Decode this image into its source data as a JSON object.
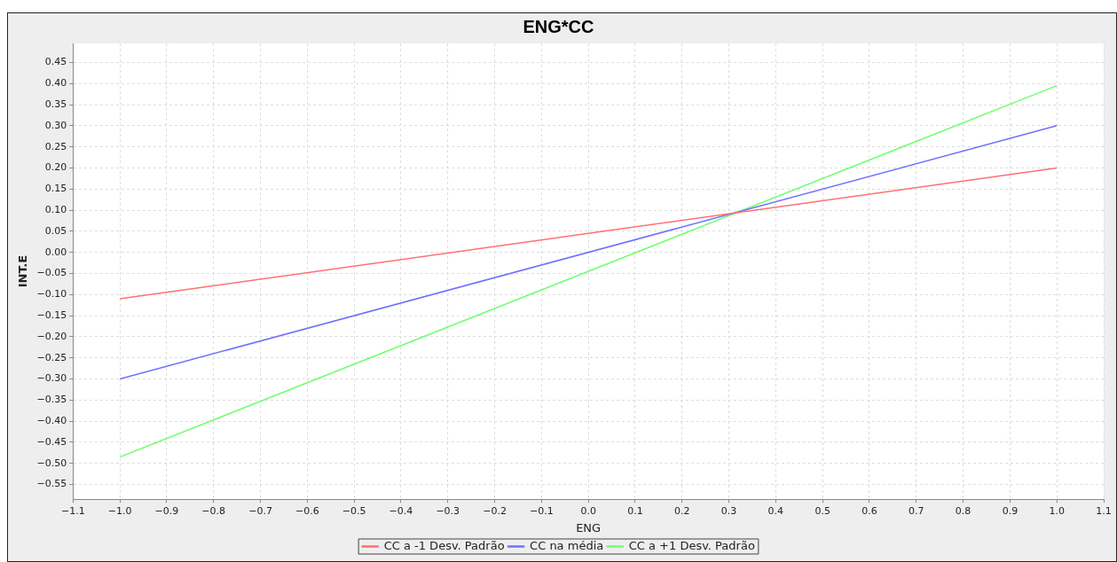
{
  "chart_data": {
    "type": "line",
    "title": "ENG*CC",
    "xlabel": "ENG",
    "ylabel": "INT.E",
    "xlim": [
      -1.1,
      1.1
    ],
    "xticks": [
      {
        "value": -1.1,
        "label": "−1.1"
      },
      {
        "value": -1.0,
        "label": "−1.0"
      },
      {
        "value": -0.9,
        "label": "−0.9"
      },
      {
        "value": -0.8,
        "label": "−0.8"
      },
      {
        "value": -0.7,
        "label": "−0.7"
      },
      {
        "value": -0.6,
        "label": "−0.6"
      },
      {
        "value": -0.5,
        "label": "−0.5"
      },
      {
        "value": -0.4,
        "label": "−0.4"
      },
      {
        "value": -0.3,
        "label": "−0.3"
      },
      {
        "value": -0.2,
        "label": "−0.2"
      },
      {
        "value": -0.1,
        "label": "−0.1"
      },
      {
        "value": 0,
        "label": "0.0"
      },
      {
        "value": 0.1,
        "label": "0.1"
      },
      {
        "value": 0.2,
        "label": "0.2"
      },
      {
        "value": 0.3,
        "label": "0.3"
      },
      {
        "value": 0.4,
        "label": "0.4"
      },
      {
        "value": 0.5,
        "label": "0.5"
      },
      {
        "value": 0.6,
        "label": "0.6"
      },
      {
        "value": 0.7,
        "label": "0.7"
      },
      {
        "value": 0.8,
        "label": "0.8"
      },
      {
        "value": 0.9,
        "label": "0.9"
      },
      {
        "value": 1.0,
        "label": "1.0"
      },
      {
        "value": 1.1,
        "label": "1.1"
      }
    ],
    "ylim": [
      -0.585,
      0.495
    ],
    "yticks": [
      {
        "value": -0.55,
        "label": "−0.55"
      },
      {
        "value": -0.5,
        "label": "−0.50"
      },
      {
        "value": -0.45,
        "label": "−0.45"
      },
      {
        "value": -0.4,
        "label": "−0.40"
      },
      {
        "value": -0.35,
        "label": "−0.35"
      },
      {
        "value": -0.3,
        "label": "−0.30"
      },
      {
        "value": -0.25,
        "label": "−0.25"
      },
      {
        "value": -0.2,
        "label": "−0.20"
      },
      {
        "value": -0.15,
        "label": "−0.15"
      },
      {
        "value": -0.1,
        "label": "−0.10"
      },
      {
        "value": -0.05,
        "label": "−0.05"
      },
      {
        "value": 0,
        "label": "0.00"
      },
      {
        "value": 0.05,
        "label": "0.05"
      },
      {
        "value": 0.1,
        "label": "0.10"
      },
      {
        "value": 0.15,
        "label": "0.15"
      },
      {
        "value": 0.2,
        "label": "0.20"
      },
      {
        "value": 0.25,
        "label": "0.25"
      },
      {
        "value": 0.3,
        "label": "0.30"
      },
      {
        "value": 0.35,
        "label": "0.35"
      },
      {
        "value": 0.4,
        "label": "0.40"
      },
      {
        "value": 0.45,
        "label": "0.45"
      }
    ],
    "x": [
      -1.0,
      1.0
    ],
    "series": [
      {
        "name": "CC a -1 Desv. Padrão",
        "color": "#ff7070",
        "values": [
          -0.11,
          0.2
        ]
      },
      {
        "name": "CC na média",
        "color": "#7070ff",
        "values": [
          -0.3,
          0.3
        ]
      },
      {
        "name": "CC a +1 Desv. Padrão",
        "color": "#70ff70",
        "values": [
          -0.485,
          0.395
        ]
      }
    ],
    "grid": true,
    "legend": "bottom",
    "marker": "none",
    "line_style": "solid"
  }
}
